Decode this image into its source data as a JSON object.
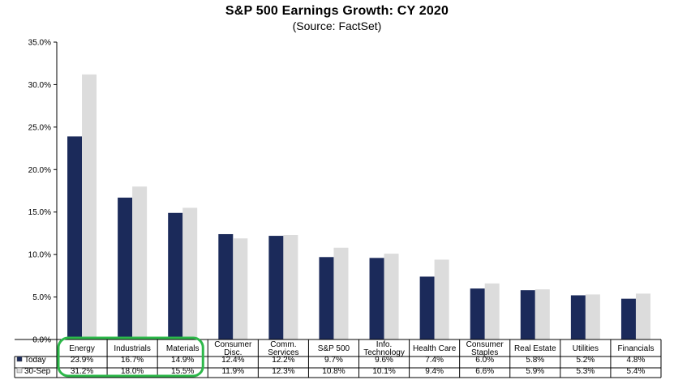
{
  "chart_data": {
    "type": "bar",
    "title": "S&P 500 Earnings Growth: CY 2020",
    "subtitle": "(Source: FactSet)",
    "categories": [
      [
        "Energy"
      ],
      [
        "Industrials"
      ],
      [
        "Materials"
      ],
      [
        "Consumer",
        "Disc."
      ],
      [
        "Comm.",
        "Services"
      ],
      [
        "S&P 500"
      ],
      [
        "Info.",
        "Technology"
      ],
      [
        "Health Care"
      ],
      [
        "Consumer",
        "Staples"
      ],
      [
        "Real Estate"
      ],
      [
        "Utilities"
      ],
      [
        "Financials"
      ]
    ],
    "series": [
      {
        "name": "Today",
        "color": "#1b2a5a",
        "values": [
          23.9,
          16.7,
          14.9,
          12.4,
          12.2,
          9.7,
          9.6,
          7.4,
          6.0,
          5.8,
          5.2,
          4.8
        ],
        "labels": [
          "23.9%",
          "16.7%",
          "14.9%",
          "12.4%",
          "12.2%",
          "9.7%",
          "9.6%",
          "7.4%",
          "6.0%",
          "5.8%",
          "5.2%",
          "4.8%"
        ]
      },
      {
        "name": "30-Sep",
        "color": "#dcdcdc",
        "values": [
          31.2,
          18.0,
          15.5,
          11.9,
          12.3,
          10.8,
          10.1,
          9.4,
          6.6,
          5.9,
          5.3,
          5.4
        ],
        "labels": [
          "31.2%",
          "18.0%",
          "15.5%",
          "11.9%",
          "12.3%",
          "10.8%",
          "10.1%",
          "9.4%",
          "6.6%",
          "5.9%",
          "5.3%",
          "5.4%"
        ]
      }
    ],
    "ylim": [
      0,
      35
    ],
    "yticks": [
      "0.0%",
      "5.0%",
      "10.0%",
      "15.0%",
      "20.0%",
      "25.0%",
      "30.0%",
      "35.0%"
    ],
    "grid": false,
    "legend": "data-table",
    "highlight": {
      "categories": [
        "Energy",
        "Industrials",
        "Materials"
      ],
      "color": "#2db84a"
    }
  }
}
